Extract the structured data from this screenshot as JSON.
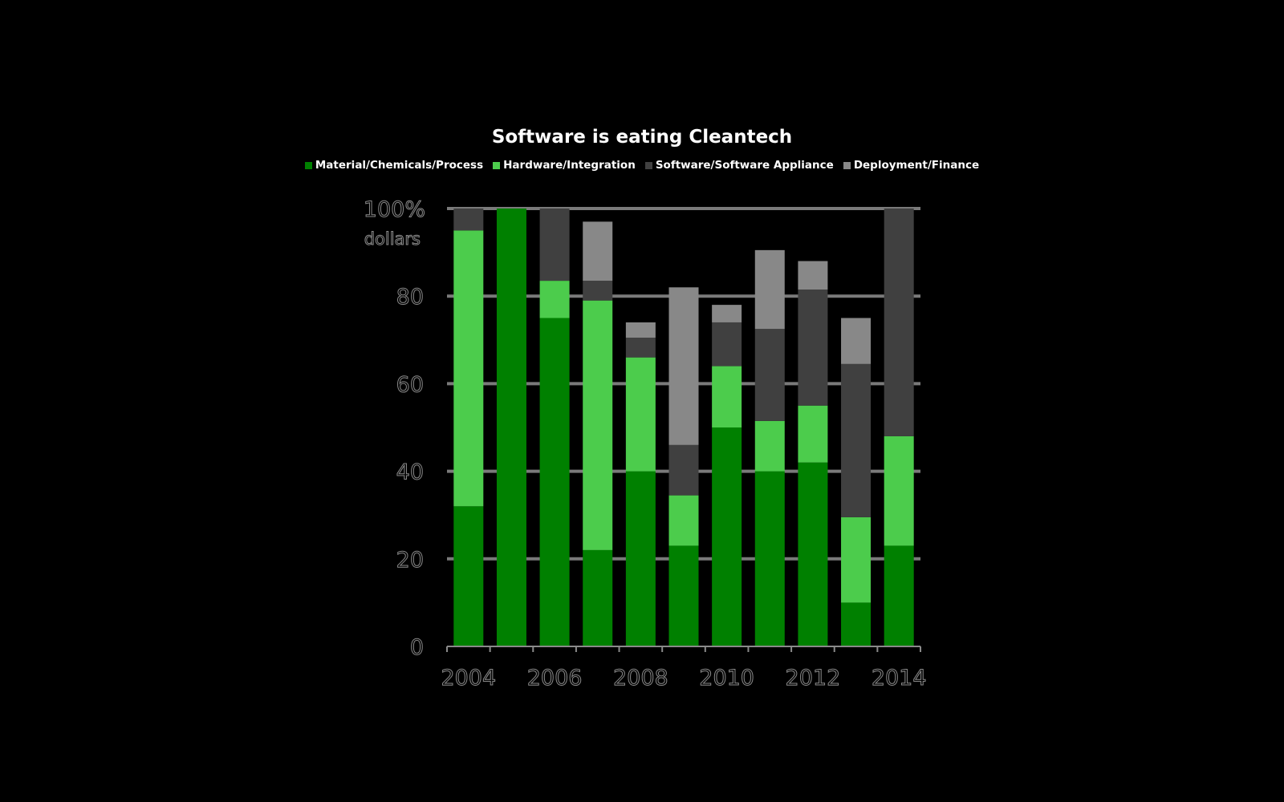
{
  "chart_data": {
    "type": "bar",
    "stacked": true,
    "title": "Software is eating Cleantech",
    "ylabel_top": "100%",
    "ylabel_unit": "dollars",
    "ylim": [
      0,
      100
    ],
    "yticks": [
      "0",
      "20",
      "40",
      "60",
      "80"
    ],
    "x": [
      2004,
      2005,
      2006,
      2007,
      2008,
      2009,
      2010,
      2011,
      2012,
      2013,
      2014
    ],
    "xtick_labels": [
      "2004",
      "2006",
      "2008",
      "2010",
      "2012",
      "2014"
    ],
    "grid": true,
    "legend_position": "top",
    "series": [
      {
        "name": "Material/Chemicals/Process",
        "color": "#008000",
        "values": [
          32,
          100,
          75,
          22,
          40,
          23,
          50,
          40,
          42,
          10,
          23
        ]
      },
      {
        "name": "Hardware/Integration",
        "color": "#4ccc4c",
        "values": [
          63,
          0,
          8.5,
          57,
          26,
          11.5,
          14,
          11.5,
          13,
          19.5,
          25
        ]
      },
      {
        "name": "Software/Software Appliance",
        "color": "#404040",
        "values": [
          5,
          0,
          16.5,
          4.5,
          4.5,
          11.5,
          10,
          21,
          26.5,
          35,
          52
        ]
      },
      {
        "name": "Deployment/Finance",
        "color": "#888888",
        "values": [
          0,
          0,
          0,
          13.5,
          3.5,
          36,
          4,
          18,
          6.5,
          10.5,
          0
        ]
      }
    ]
  }
}
